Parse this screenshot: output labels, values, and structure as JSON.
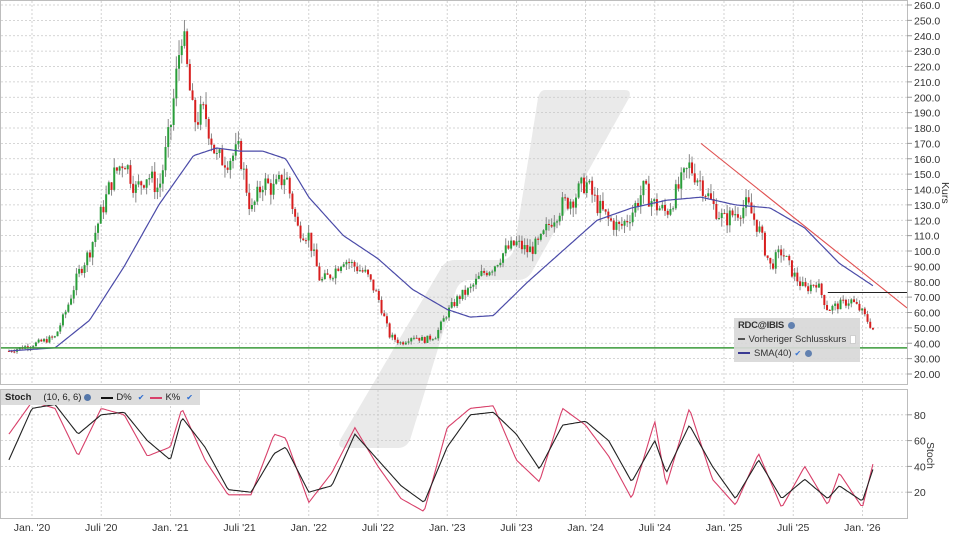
{
  "chart_data": [
    {
      "type": "candlestick",
      "title": "",
      "symbol": "RDC@IBIS",
      "xlabel": "",
      "ylabel": "Kurs",
      "ylim": [
        20,
        260
      ],
      "y_ticks": [
        "260.0",
        "250.0",
        "240.0",
        "230.0",
        "220.0",
        "210.0",
        "200.0",
        "190.0",
        "180.0",
        "170.0",
        "160.0",
        "150.0",
        "140.0",
        "130.0",
        "120.0",
        "110.0",
        "100.0",
        "90.00",
        "80.00",
        "70.00",
        "60.00",
        "50.00",
        "40.00",
        "30.00",
        "20.00"
      ],
      "x_ticks": [
        "Jan. '20",
        "Juli '20",
        "Jan. '21",
        "Juli '21",
        "Jan. '22",
        "Juli '22",
        "Jan. '23",
        "Juli '23",
        "Jan. '24",
        "Juli '24",
        "Jan. '25",
        "Juli '25",
        "Jan. '26"
      ],
      "grid": true,
      "legend": {
        "title": "RDC@IBIS",
        "items": [
          {
            "label": "Vorheriger Schlusskurs",
            "style": "dashed",
            "checked": false
          },
          {
            "label": "SMA(40)",
            "style": "solid",
            "color": "#3a3a9a",
            "checked": true
          }
        ],
        "position": "lower-right"
      },
      "series_close_path": [
        {
          "date": "2019-11",
          "close": 35
        },
        {
          "date": "2020-01",
          "close": 39
        },
        {
          "date": "2020-03",
          "close": 44
        },
        {
          "date": "2020-04",
          "close": 62
        },
        {
          "date": "2020-05",
          "close": 85
        },
        {
          "date": "2020-06",
          "close": 100
        },
        {
          "date": "2020-07",
          "close": 125
        },
        {
          "date": "2020-08",
          "close": 148
        },
        {
          "date": "2020-09",
          "close": 160
        },
        {
          "date": "2020-10",
          "close": 140
        },
        {
          "date": "2020-11",
          "close": 150
        },
        {
          "date": "2020-12",
          "close": 140
        },
        {
          "date": "2021-01",
          "close": 180
        },
        {
          "date": "2021-02",
          "close": 245
        },
        {
          "date": "2021-03",
          "close": 185
        },
        {
          "date": "2021-04",
          "close": 190
        },
        {
          "date": "2021-05",
          "close": 160
        },
        {
          "date": "2021-06",
          "close": 160
        },
        {
          "date": "2021-07",
          "close": 165
        },
        {
          "date": "2021-08",
          "close": 125
        },
        {
          "date": "2021-09",
          "close": 145
        },
        {
          "date": "2021-10",
          "close": 140
        },
        {
          "date": "2021-11",
          "close": 150
        },
        {
          "date": "2021-12",
          "close": 115
        },
        {
          "date": "2022-01",
          "close": 110
        },
        {
          "date": "2022-02",
          "close": 80
        },
        {
          "date": "2022-03",
          "close": 85
        },
        {
          "date": "2022-04",
          "close": 95
        },
        {
          "date": "2022-05",
          "close": 90
        },
        {
          "date": "2022-06",
          "close": 85
        },
        {
          "date": "2022-07",
          "close": 70
        },
        {
          "date": "2022-08",
          "close": 45
        },
        {
          "date": "2022-09",
          "close": 40
        },
        {
          "date": "2022-10",
          "close": 45
        },
        {
          "date": "2022-11",
          "close": 42
        },
        {
          "date": "2022-12",
          "close": 45
        },
        {
          "date": "2023-01",
          "close": 60
        },
        {
          "date": "2023-02",
          "close": 70
        },
        {
          "date": "2023-03",
          "close": 75
        },
        {
          "date": "2023-04",
          "close": 85
        },
        {
          "date": "2023-05",
          "close": 90
        },
        {
          "date": "2023-06",
          "close": 100
        },
        {
          "date": "2023-07",
          "close": 105
        },
        {
          "date": "2023-08",
          "close": 100
        },
        {
          "date": "2023-09",
          "close": 105
        },
        {
          "date": "2023-10",
          "close": 120
        },
        {
          "date": "2023-11",
          "close": 130
        },
        {
          "date": "2023-12",
          "close": 135
        },
        {
          "date": "2024-01",
          "close": 145
        },
        {
          "date": "2024-02",
          "close": 130
        },
        {
          "date": "2024-03",
          "close": 120
        },
        {
          "date": "2024-04",
          "close": 115
        },
        {
          "date": "2024-05",
          "close": 125
        },
        {
          "date": "2024-06",
          "close": 140
        },
        {
          "date": "2024-07",
          "close": 130
        },
        {
          "date": "2024-08",
          "close": 125
        },
        {
          "date": "2024-09",
          "close": 140
        },
        {
          "date": "2024-10",
          "close": 155
        },
        {
          "date": "2024-11",
          "close": 145
        },
        {
          "date": "2024-12",
          "close": 130
        },
        {
          "date": "2025-01",
          "close": 120
        },
        {
          "date": "2025-02",
          "close": 125
        },
        {
          "date": "2025-03",
          "close": 130
        },
        {
          "date": "2025-04",
          "close": 115
        },
        {
          "date": "2025-05",
          "close": 90
        },
        {
          "date": "2025-06",
          "close": 100
        },
        {
          "date": "2025-07",
          "close": 85
        },
        {
          "date": "2025-08",
          "close": 75
        },
        {
          "date": "2025-09",
          "close": 80
        },
        {
          "date": "2025-10",
          "close": 62
        },
        {
          "date": "2025-11",
          "close": 65
        },
        {
          "date": "2025-12",
          "close": 68
        },
        {
          "date": "2026-01",
          "close": 60
        },
        {
          "date": "2026-02",
          "close": 48
        }
      ],
      "sma40_path": [
        {
          "date": "2019-11",
          "value": 35
        },
        {
          "date": "2020-03",
          "value": 37
        },
        {
          "date": "2020-06",
          "value": 55
        },
        {
          "date": "2020-09",
          "value": 90
        },
        {
          "date": "2020-12",
          "value": 130
        },
        {
          "date": "2021-03",
          "value": 162
        },
        {
          "date": "2021-05",
          "value": 167
        },
        {
          "date": "2021-07",
          "value": 165
        },
        {
          "date": "2021-09",
          "value": 165
        },
        {
          "date": "2021-11",
          "value": 160
        },
        {
          "date": "2022-01",
          "value": 135
        },
        {
          "date": "2022-04",
          "value": 110
        },
        {
          "date": "2022-07",
          "value": 95
        },
        {
          "date": "2022-10",
          "value": 75
        },
        {
          "date": "2023-01",
          "value": 62
        },
        {
          "date": "2023-03",
          "value": 57
        },
        {
          "date": "2023-05",
          "value": 58
        },
        {
          "date": "2023-08",
          "value": 80
        },
        {
          "date": "2023-11",
          "value": 100
        },
        {
          "date": "2024-02",
          "value": 120
        },
        {
          "date": "2024-05",
          "value": 128
        },
        {
          "date": "2024-08",
          "value": 133
        },
        {
          "date": "2024-11",
          "value": 135
        },
        {
          "date": "2025-02",
          "value": 130
        },
        {
          "date": "2025-05",
          "value": 128
        },
        {
          "date": "2025-08",
          "value": 115
        },
        {
          "date": "2025-11",
          "value": 92
        },
        {
          "date": "2026-02",
          "value": 77
        }
      ],
      "annotations": [
        {
          "type": "horizontal_line",
          "value": 37,
          "color": "#3a9a3a",
          "label": "support"
        },
        {
          "type": "trendline",
          "from": {
            "date": "2024-11",
            "value": 170
          },
          "to": {
            "date": "2026-03",
            "value": 63
          },
          "color": "#e05050"
        },
        {
          "type": "horizontal_line_segment",
          "value": 73,
          "from_date": "2025-10",
          "to_date": "2026-03",
          "color": "#222222"
        }
      ]
    },
    {
      "type": "line",
      "title": "Stoch",
      "params": "(10, 6, 6)",
      "ylabel": "Stoch",
      "ylim": [
        0,
        100
      ],
      "y_ticks": [
        "80",
        "60",
        "40",
        "20"
      ],
      "series": [
        {
          "name": "D%",
          "color": "#222222",
          "checked": true,
          "path": [
            {
              "date": "2019-11",
              "value": 45
            },
            {
              "date": "2020-01",
              "value": 85
            },
            {
              "date": "2020-03",
              "value": 88
            },
            {
              "date": "2020-05",
              "value": 65
            },
            {
              "date": "2020-07",
              "value": 80
            },
            {
              "date": "2020-09",
              "value": 82
            },
            {
              "date": "2020-11",
              "value": 60
            },
            {
              "date": "2021-01",
              "value": 45
            },
            {
              "date": "2021-02",
              "value": 78
            },
            {
              "date": "2021-04",
              "value": 55
            },
            {
              "date": "2021-06",
              "value": 22
            },
            {
              "date": "2021-08",
              "value": 20
            },
            {
              "date": "2021-10",
              "value": 50
            },
            {
              "date": "2021-11",
              "value": 55
            },
            {
              "date": "2022-01",
              "value": 20
            },
            {
              "date": "2022-03",
              "value": 25
            },
            {
              "date": "2022-05",
              "value": 65
            },
            {
              "date": "2022-07",
              "value": 45
            },
            {
              "date": "2022-09",
              "value": 25
            },
            {
              "date": "2022-11",
              "value": 12
            },
            {
              "date": "2023-01",
              "value": 55
            },
            {
              "date": "2023-03",
              "value": 80
            },
            {
              "date": "2023-05",
              "value": 82
            },
            {
              "date": "2023-07",
              "value": 65
            },
            {
              "date": "2023-09",
              "value": 38
            },
            {
              "date": "2023-11",
              "value": 72
            },
            {
              "date": "2024-01",
              "value": 75
            },
            {
              "date": "2024-03",
              "value": 60
            },
            {
              "date": "2024-05",
              "value": 28
            },
            {
              "date": "2024-07",
              "value": 60
            },
            {
              "date": "2024-08",
              "value": 35
            },
            {
              "date": "2024-10",
              "value": 72
            },
            {
              "date": "2024-12",
              "value": 40
            },
            {
              "date": "2025-02",
              "value": 15
            },
            {
              "date": "2025-04",
              "value": 45
            },
            {
              "date": "2025-06",
              "value": 15
            },
            {
              "date": "2025-08",
              "value": 30
            },
            {
              "date": "2025-10",
              "value": 15
            },
            {
              "date": "2025-11",
              "value": 25
            },
            {
              "date": "2026-01",
              "value": 13
            },
            {
              "date": "2026-02",
              "value": 40
            }
          ]
        },
        {
          "name": "K%",
          "color": "#d03050",
          "checked": true,
          "path": [
            {
              "date": "2019-11",
              "value": 65
            },
            {
              "date": "2020-01",
              "value": 90
            },
            {
              "date": "2020-03",
              "value": 85
            },
            {
              "date": "2020-05",
              "value": 48
            },
            {
              "date": "2020-07",
              "value": 85
            },
            {
              "date": "2020-09",
              "value": 80
            },
            {
              "date": "2020-11",
              "value": 48
            },
            {
              "date": "2021-01",
              "value": 55
            },
            {
              "date": "2021-02",
              "value": 85
            },
            {
              "date": "2021-04",
              "value": 45
            },
            {
              "date": "2021-06",
              "value": 18
            },
            {
              "date": "2021-08",
              "value": 18
            },
            {
              "date": "2021-10",
              "value": 65
            },
            {
              "date": "2021-11",
              "value": 62
            },
            {
              "date": "2022-01",
              "value": 12
            },
            {
              "date": "2022-03",
              "value": 35
            },
            {
              "date": "2022-05",
              "value": 70
            },
            {
              "date": "2022-07",
              "value": 40
            },
            {
              "date": "2022-09",
              "value": 15
            },
            {
              "date": "2022-11",
              "value": 5
            },
            {
              "date": "2023-01",
              "value": 70
            },
            {
              "date": "2023-03",
              "value": 85
            },
            {
              "date": "2023-05",
              "value": 87
            },
            {
              "date": "2023-07",
              "value": 45
            },
            {
              "date": "2023-09",
              "value": 28
            },
            {
              "date": "2023-11",
              "value": 85
            },
            {
              "date": "2024-01",
              "value": 72
            },
            {
              "date": "2024-03",
              "value": 48
            },
            {
              "date": "2024-05",
              "value": 15
            },
            {
              "date": "2024-07",
              "value": 75
            },
            {
              "date": "2024-08",
              "value": 25
            },
            {
              "date": "2024-10",
              "value": 85
            },
            {
              "date": "2024-12",
              "value": 30
            },
            {
              "date": "2025-02",
              "value": 10
            },
            {
              "date": "2025-04",
              "value": 50
            },
            {
              "date": "2025-06",
              "value": 8
            },
            {
              "date": "2025-08",
              "value": 40
            },
            {
              "date": "2025-10",
              "value": 10
            },
            {
              "date": "2025-11",
              "value": 35
            },
            {
              "date": "2026-01",
              "value": 8
            },
            {
              "date": "2026-02",
              "value": 45
            }
          ]
        }
      ]
    }
  ],
  "main_panel": {
    "axis_title": "Kurs",
    "legend_title": "RDC@IBIS",
    "legend_prev_close": "Vorheriger Schlusskurs",
    "legend_sma": "SMA(40)"
  },
  "stoch_panel": {
    "title": "Stoch",
    "params": "(10, 6, 6)",
    "d_label": "D%",
    "k_label": "K%",
    "axis_title": "Stoch"
  },
  "colors": {
    "up": "#2a9d3a",
    "down": "#d81e1e",
    "wick": "#888888",
    "sma": "#4b4ba8",
    "support": "#3a9a3a",
    "trend": "#e86060",
    "d_line": "#222222",
    "k_line": "#d8406a",
    "grid": "#c8c8c8",
    "watermark": "#e6e6e6"
  }
}
